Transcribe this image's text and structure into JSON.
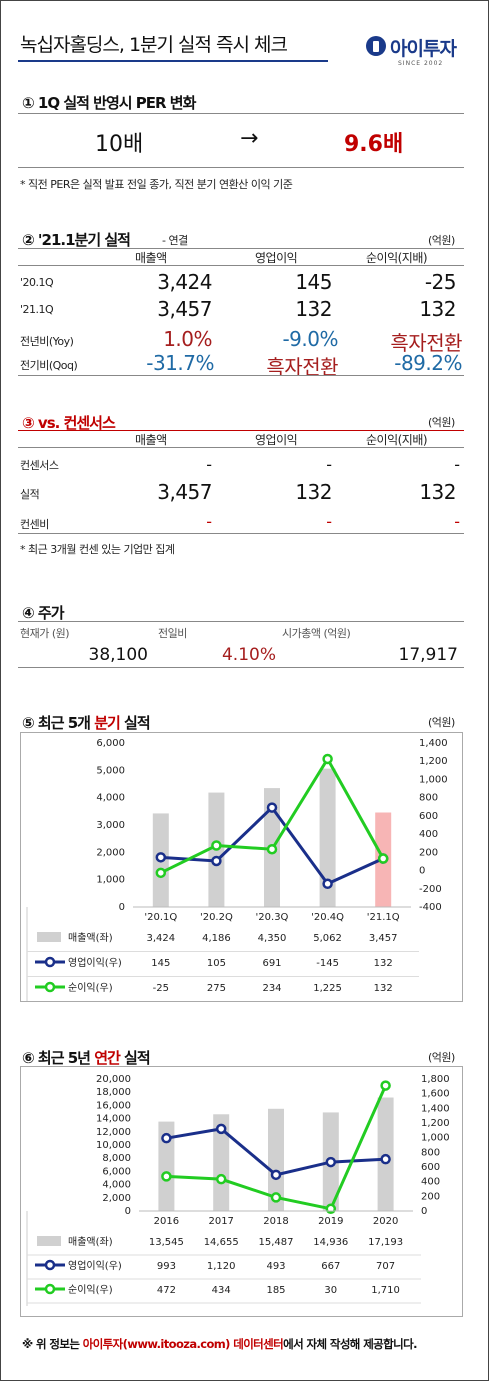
{
  "header": {
    "title": "녹십자홀딩스, 1분기 실적 즉시 체크",
    "logo_text": "아이투자",
    "logo_sub": "SINCE 2002"
  },
  "per": {
    "title": "① 1Q 실적 반영시 PER 변화",
    "before": "10배",
    "arrow": "→",
    "after": "9.6배",
    "note": "* 직전 PER은 실적 발표 전일 종가, 직전 분기 연환산 이익 기준"
  },
  "q1": {
    "title": "② '21.1분기 실적",
    "subtitle": "- 연결",
    "unit": "(억원)",
    "cols": [
      "매출액",
      "영업이익",
      "순이익(지배)"
    ],
    "rows": [
      {
        "label": "'20.1Q",
        "values": [
          "3,424",
          "145",
          "-25"
        ]
      },
      {
        "label": "'21.1Q",
        "values": [
          "3,457",
          "132",
          "132"
        ]
      },
      {
        "label": "전년비(Yoy)",
        "values": [
          "1.0%",
          "-9.0%",
          "흑자전환"
        ]
      },
      {
        "label": "전기비(Qoq)",
        "values": [
          "-31.7%",
          "흑자전환",
          "-89.2%"
        ]
      }
    ]
  },
  "consensus": {
    "title_prefix": "③ vs. ",
    "title_red": "컨센서스",
    "unit": "(억원)",
    "cols": [
      "매출액",
      "영업이익",
      "순이익(지배)"
    ],
    "rows": [
      {
        "label": "컨센서스",
        "values": [
          "-",
          "-",
          "-"
        ]
      },
      {
        "label": "실적",
        "values": [
          "3,457",
          "132",
          "132"
        ]
      },
      {
        "label": "컨센비",
        "values": [
          "-",
          "-",
          "-"
        ]
      }
    ],
    "note": "* 최근 3개월 컨센 있는 기업만 집계"
  },
  "price": {
    "title": "④ 주가",
    "labels": [
      "현재가 (원)",
      "전일비",
      "시가총액 (억원)"
    ],
    "values": [
      "38,100",
      "4.10%",
      "17,917"
    ]
  },
  "quarterly": {
    "title_prefix": "⑤ 최근 5개 ",
    "title_red": "분기",
    "title_suffix": " 실적",
    "unit": "(억원)"
  },
  "annual": {
    "title_prefix": "⑥ 최근 5년 ",
    "title_red": "연간",
    "title_suffix": " 실적",
    "unit": "(억원)"
  },
  "footer": {
    "prefix": "※ 위 정보는 ",
    "red": "아이투자(www.itooza.com) 데이터센터",
    "suffix": "에서 자체 작성해 제공합니다."
  },
  "chart_data": [
    {
      "type": "bar",
      "categories": [
        "'20.1Q",
        "'20.2Q",
        "'20.3Q",
        "'20.4Q",
        "'21.1Q"
      ],
      "series": [
        {
          "name": "매출액(좌)",
          "type": "bar",
          "axis": "left",
          "values": [
            3424,
            4186,
            4350,
            5062,
            3457
          ],
          "labels": [
            "3,424",
            "4,186",
            "4,350",
            "5,062",
            "3,457"
          ],
          "color": "#d0d0d0",
          "highlight_color": "#f7b5b5"
        },
        {
          "name": "영업이익(우)",
          "type": "line",
          "axis": "right",
          "values": [
            145,
            105,
            691,
            -145,
            132
          ],
          "labels": [
            "145",
            "105",
            "691",
            "-145",
            "132"
          ],
          "color": "#1a2f8a"
        },
        {
          "name": "순이익(우)",
          "type": "line",
          "axis": "right",
          "values": [
            -25,
            275,
            234,
            1225,
            132
          ],
          "labels": [
            "-25",
            "275",
            "234",
            "1,225",
            "132"
          ],
          "color": "#22cc22"
        }
      ],
      "ylim_left": [
        0,
        6000
      ],
      "yticks_left": [
        "6,000",
        "5,000",
        "4,000",
        "3,000",
        "2,000",
        "1,000",
        "0"
      ],
      "ylim_right": [
        -400,
        1400
      ],
      "yticks_right": [
        "1,400",
        "1,200",
        "1,000",
        "800",
        "600",
        "400",
        "200",
        "0",
        "-200",
        "-400"
      ]
    },
    {
      "type": "bar",
      "categories": [
        "2016",
        "2017",
        "2018",
        "2019",
        "2020"
      ],
      "series": [
        {
          "name": "매출액(좌)",
          "type": "bar",
          "axis": "left",
          "values": [
            13545,
            14655,
            15487,
            14936,
            17193
          ],
          "labels": [
            "13,545",
            "14,655",
            "15,487",
            "14,936",
            "17,193"
          ],
          "color": "#d0d0d0"
        },
        {
          "name": "영업이익(우)",
          "type": "line",
          "axis": "right",
          "values": [
            993,
            1120,
            493,
            667,
            707
          ],
          "labels": [
            "993",
            "1,120",
            "493",
            "667",
            "707"
          ],
          "color": "#1a2f8a"
        },
        {
          "name": "순이익(우)",
          "type": "line",
          "axis": "right",
          "values": [
            472,
            434,
            185,
            30,
            1710
          ],
          "labels": [
            "472",
            "434",
            "185",
            "30",
            "1,710"
          ],
          "color": "#22cc22"
        }
      ],
      "ylim_left": [
        0,
        20000
      ],
      "yticks_left": [
        "20,000",
        "18,000",
        "16,000",
        "14,000",
        "12,000",
        "10,000",
        "8,000",
        "6,000",
        "4,000",
        "2,000",
        "0"
      ],
      "ylim_right": [
        0,
        1800
      ],
      "yticks_right": [
        "1,800",
        "1,600",
        "1,400",
        "1,200",
        "1,000",
        "800",
        "600",
        "400",
        "200",
        "0"
      ]
    }
  ]
}
